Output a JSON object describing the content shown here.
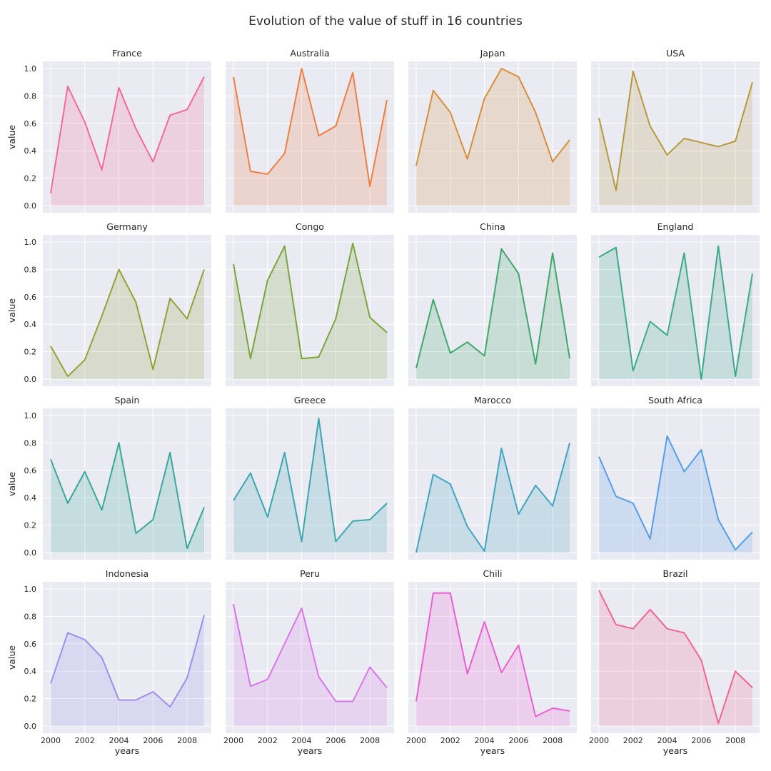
{
  "chart_data": {
    "type": "area",
    "title": "Evolution of the value of stuff in 16 countries",
    "xlabel": "years",
    "ylabel": "value",
    "x": [
      2000,
      2001,
      2002,
      2003,
      2004,
      2005,
      2006,
      2007,
      2008,
      2009
    ],
    "xticks": [
      "2000",
      "2002",
      "2004",
      "2006",
      "2008"
    ],
    "yticks": [
      "0.0",
      "0.2",
      "0.4",
      "0.6",
      "0.8",
      "1.0"
    ],
    "ylim": [
      0,
      1
    ],
    "grid": true,
    "layout": "4x4 small multiples, shared axes",
    "series": [
      {
        "name": "France",
        "color": "#f3699a",
        "values": [
          0.09,
          0.87,
          0.61,
          0.26,
          0.86,
          0.56,
          0.32,
          0.66,
          0.7,
          0.94
        ]
      },
      {
        "name": "Australia",
        "color": "#ef7f41",
        "values": [
          0.94,
          0.25,
          0.23,
          0.38,
          1.0,
          0.51,
          0.58,
          0.97,
          0.14,
          0.77
        ]
      },
      {
        "name": "Japan",
        "color": "#d6903a",
        "values": [
          0.29,
          0.84,
          0.68,
          0.34,
          0.78,
          1.0,
          0.94,
          0.68,
          0.32,
          0.48
        ]
      },
      {
        "name": "USA",
        "color": "#b59a3c",
        "values": [
          0.64,
          0.11,
          0.98,
          0.58,
          0.37,
          0.49,
          0.46,
          0.43,
          0.47,
          0.9
        ]
      },
      {
        "name": "Germany",
        "color": "#93a237",
        "values": [
          0.24,
          0.02,
          0.14,
          0.46,
          0.8,
          0.56,
          0.07,
          0.59,
          0.44,
          0.8
        ]
      },
      {
        "name": "Congo",
        "color": "#7aa53b",
        "values": [
          0.84,
          0.15,
          0.72,
          0.97,
          0.15,
          0.16,
          0.44,
          0.99,
          0.45,
          0.34
        ]
      },
      {
        "name": "China",
        "color": "#3ea86a",
        "values": [
          0.08,
          0.58,
          0.19,
          0.27,
          0.17,
          0.95,
          0.77,
          0.11,
          0.92,
          0.15
        ]
      },
      {
        "name": "England",
        "color": "#3aaa8e",
        "values": [
          0.89,
          0.96,
          0.06,
          0.42,
          0.32,
          0.92,
          0.0,
          0.97,
          0.02,
          0.77
        ]
      },
      {
        "name": "Spain",
        "color": "#38a89b",
        "values": [
          0.68,
          0.36,
          0.59,
          0.31,
          0.8,
          0.14,
          0.24,
          0.73,
          0.03,
          0.33
        ]
      },
      {
        "name": "Greece",
        "color": "#3aa6b0",
        "values": [
          0.38,
          0.58,
          0.26,
          0.73,
          0.08,
          0.98,
          0.08,
          0.23,
          0.24,
          0.36
        ]
      },
      {
        "name": "Marocco",
        "color": "#3ea6c0",
        "values": [
          0.0,
          0.57,
          0.5,
          0.19,
          0.01,
          0.76,
          0.28,
          0.49,
          0.34,
          0.8
        ]
      },
      {
        "name": "South Africa",
        "color": "#559ee8",
        "values": [
          0.7,
          0.41,
          0.36,
          0.1,
          0.85,
          0.59,
          0.75,
          0.24,
          0.02,
          0.15
        ]
      },
      {
        "name": "Indonesia",
        "color": "#9c90ec",
        "values": [
          0.31,
          0.68,
          0.63,
          0.5,
          0.19,
          0.19,
          0.25,
          0.14,
          0.35,
          0.81
        ]
      },
      {
        "name": "Peru",
        "color": "#d878e6",
        "values": [
          0.89,
          0.29,
          0.34,
          0.6,
          0.86,
          0.36,
          0.18,
          0.18,
          0.43,
          0.28
        ]
      },
      {
        "name": "Chili",
        "color": "#ec5fd2",
        "values": [
          0.18,
          0.97,
          0.97,
          0.38,
          0.76,
          0.39,
          0.59,
          0.07,
          0.13,
          0.11
        ]
      },
      {
        "name": "Brazil",
        "color": "#f0668e",
        "values": [
          0.99,
          0.74,
          0.71,
          0.85,
          0.71,
          0.68,
          0.48,
          0.02,
          0.4,
          0.28
        ]
      }
    ]
  }
}
